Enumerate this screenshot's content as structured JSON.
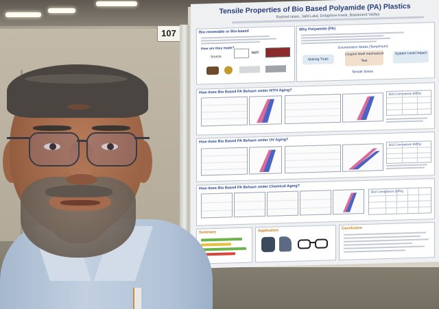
{
  "board_number": "107",
  "poster": {
    "title": "Tensile Properties of Bio Based Polyamide (PA) Plastics",
    "authors": "Rashed Islam, Jaild Lalal, Dolaphine Kwok, Bawanand Vaidya",
    "intro_heading": "Bio-renewable or Bio-based",
    "intro_question": "How are they made?",
    "intro_source_label": "Source",
    "intro_not": "NOT",
    "why_heading": "Why Polyamide (PA)",
    "environment_label": "Environment Stress (Temp/Hum)",
    "making_trials_label": "Making Trials",
    "mechanical_label": "Coupon level mechanical Test",
    "system_label": "System Level Impact",
    "tensile_label": "Tensile Stress",
    "section_hth": "How does Bio Based PA Behave under H/TH Aging?",
    "section_uv": "How does Bio Based PA Behave under UV Aging?",
    "section_chem": "How does Bio Based PA Behave under Chemical Aging?",
    "table_hth_header": "B10 Comparison (MPa)",
    "table_uv_header": "B10 Comparison (MPa)",
    "table_chem_header": "B10 Comparison (MPa)",
    "summary_heading": "Summary",
    "application_heading": "Application",
    "conclusion_heading": "Conclusion"
  },
  "colors": {
    "poster_title": "#2b3f7a",
    "section_header": "#2a4790",
    "plot_pink": "#d96a9a",
    "plot_blue": "#4a64c4",
    "summary_green": "#6bb34a",
    "summary_yellow": "#e6c23a",
    "summary_red": "#d9463a"
  }
}
